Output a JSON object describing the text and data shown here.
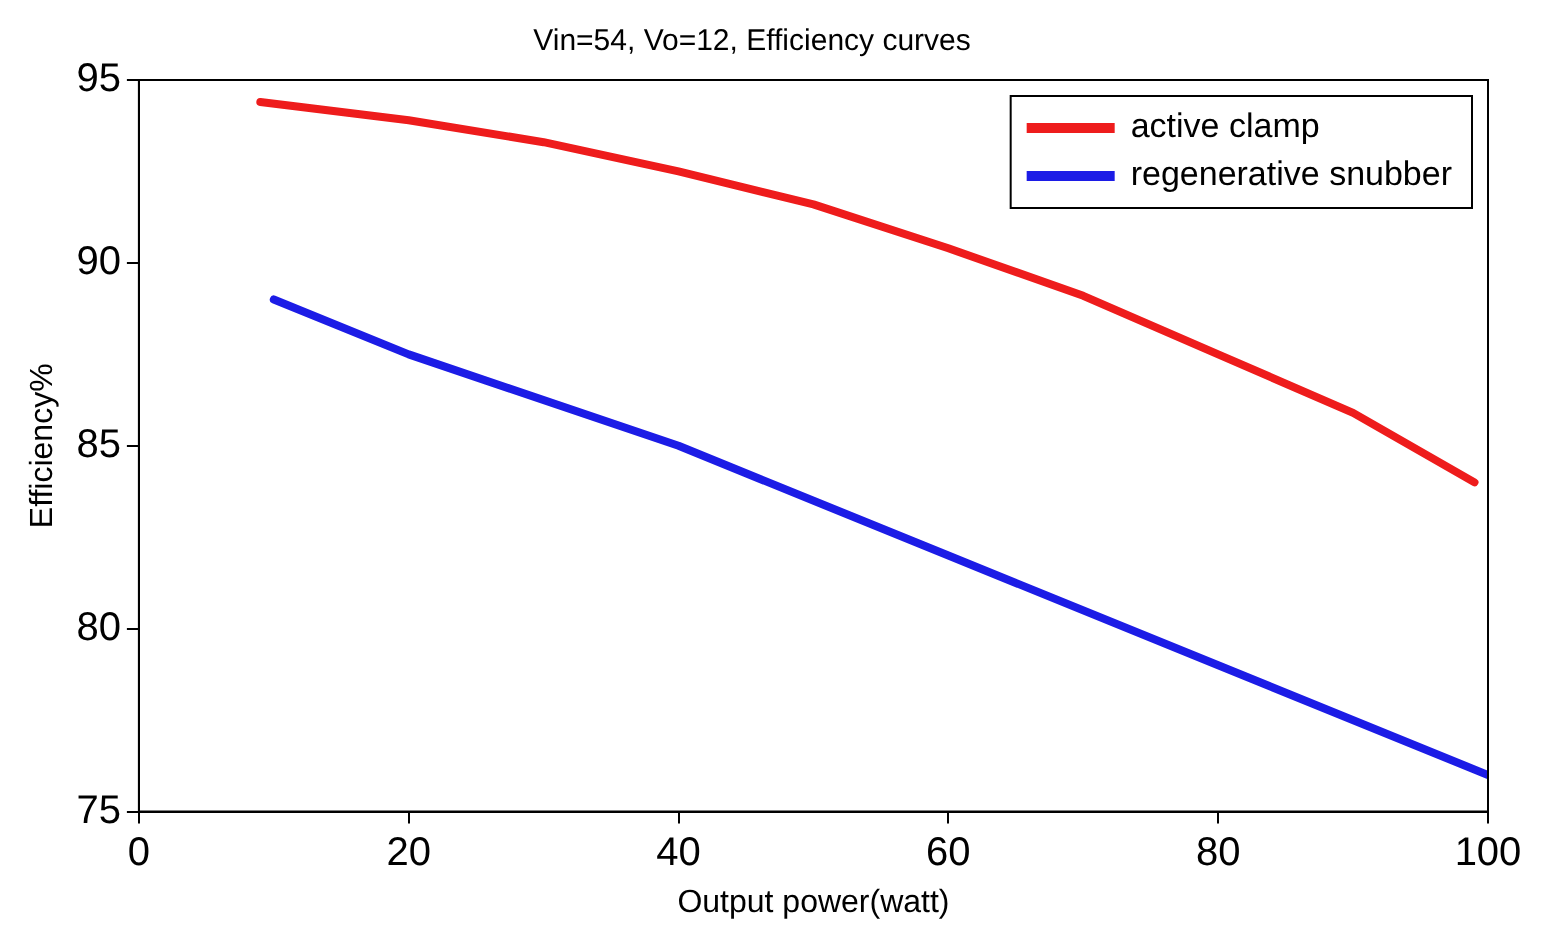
{
  "chart_data": {
    "type": "line",
    "title": "Vin=54, Vo=12, Efficiency curves",
    "xlabel": "Output power(watt)",
    "ylabel": "Efficiency%",
    "xlim": [
      0,
      100
    ],
    "xticks": [
      0,
      20,
      40,
      60,
      80,
      100
    ],
    "ylim": [
      75,
      95
    ],
    "yticks": [
      75,
      80,
      85,
      90,
      95
    ],
    "grid": false,
    "legend": "top right",
    "marker": "none",
    "line_style": "solid",
    "series": [
      {
        "name": "active clamp",
        "color": "#ee1c1c",
        "x": [
          9,
          20,
          30,
          40,
          50,
          60,
          70,
          80,
          90,
          99
        ],
        "values": [
          94.4,
          93.9,
          93.3,
          92.5,
          91.6,
          90.4,
          89.1,
          87.5,
          85.9,
          84.0
        ]
      },
      {
        "name": "regenerative snubber",
        "color": "#1c1ce6",
        "x": [
          10,
          20,
          40,
          60,
          80,
          100
        ],
        "values": [
          89.0,
          87.5,
          85.0,
          82.0,
          79.0,
          76.0
        ]
      }
    ]
  }
}
